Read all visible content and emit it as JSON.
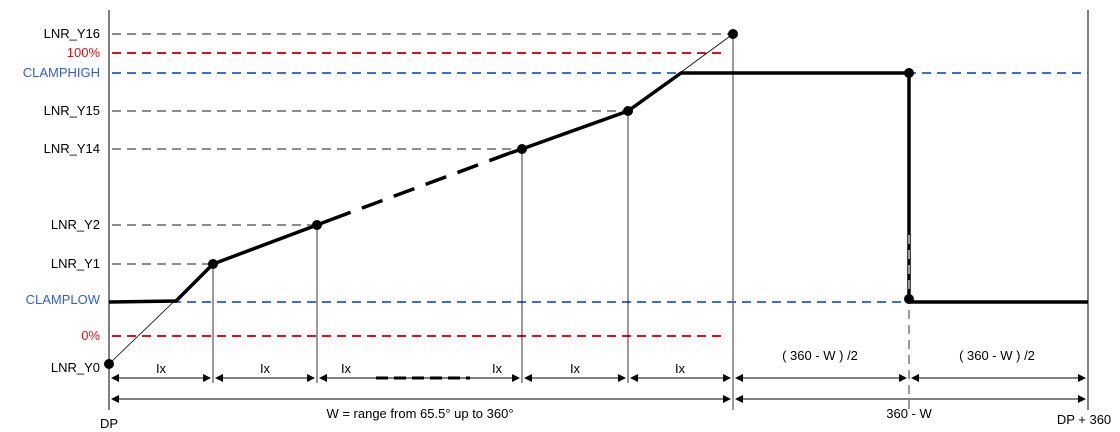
{
  "colors": {
    "axis": "#000000",
    "reference_line": "#8c8c8c",
    "percent_line": "#e0101a",
    "clamp_line": "#3a6fd8",
    "curve": "#000000"
  },
  "y_labels": {
    "lnr_y16": "LNR_Y16",
    "p100": "100%",
    "clamphigh": "CLAMPHIGH",
    "lnr_y15": "LNR_Y15",
    "lnr_y14": "LNR_Y14",
    "lnr_y2": "LNR_Y2",
    "lnr_y1": "LNR_Y1",
    "clamplow": "CLAMPLOW",
    "p0": "0%",
    "lnr_y0": "LNR_Y0"
  },
  "interval_labels": {
    "step1": "Ix",
    "step2": "Ix",
    "step3": "Ix",
    "step4": "Ix",
    "step5": "Ix",
    "step6": "Ix",
    "half_left": "( 360 - W ) /2",
    "half_right": "( 360 - W ) /2",
    "w_range": "W = range from 65.5° up to 360°",
    "complement": "360 - W"
  },
  "x_labels": {
    "dp": "DP",
    "dp360": "DP + 360"
  }
}
